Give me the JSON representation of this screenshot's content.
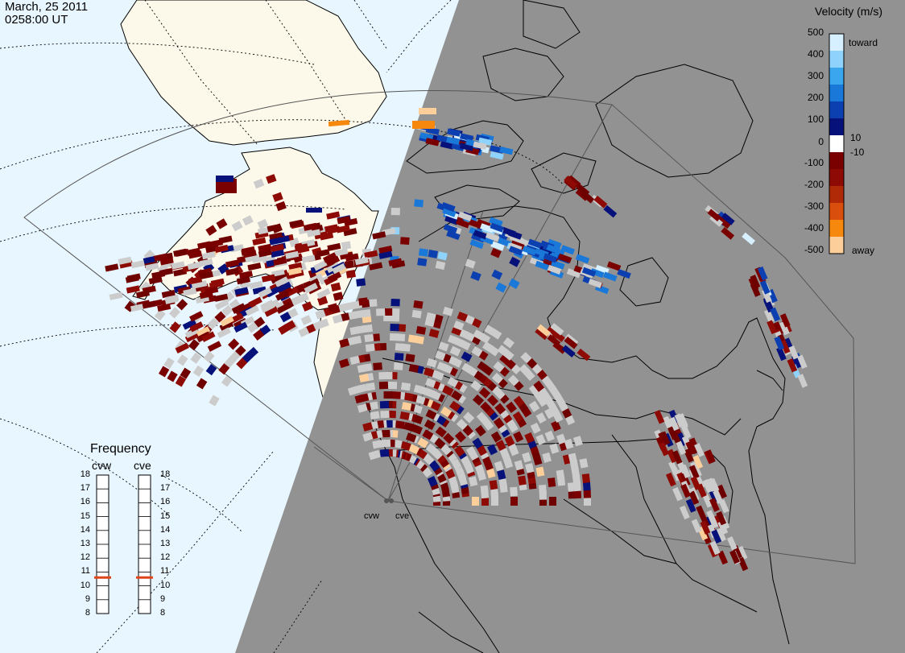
{
  "header": {
    "date": "March, 25 2011",
    "time": "0258:00 UT"
  },
  "velocity_scale": {
    "title": "Velocity (m/s)",
    "toward_label": "toward",
    "away_label": "away",
    "ticks": [
      "500",
      "400",
      "300",
      "200",
      "100",
      "10",
      "0",
      "-10",
      "-100",
      "-200",
      "-300",
      "-400",
      "-500"
    ],
    "colors": [
      "#d6f0ff",
      "#8fd2fb",
      "#3aa6ee",
      "#1a78d8",
      "#0c3fb0",
      "#06127a",
      "#ffffff",
      "#7a0000",
      "#8e0a05",
      "#b02a08",
      "#d94e0c",
      "#f7880e",
      "#fccf9a"
    ]
  },
  "frequency_panel": {
    "title": "Frequency",
    "stations": [
      "cvw",
      "cve"
    ],
    "ticks": [
      "18",
      "17",
      "16",
      "15",
      "14",
      "13",
      "12",
      "11",
      "10",
      "9",
      "8"
    ],
    "cvw_mhz": 10.6,
    "cve_mhz": 10.6,
    "marker_color": "#e0461c"
  },
  "radar_sites": {
    "west_label": "cvw",
    "east_label": "cve"
  },
  "colors": {
    "ocean": "#e8f6ff",
    "land": "#fcf9ea",
    "night": "#929292",
    "ground_scatter": "#cccccc"
  }
}
